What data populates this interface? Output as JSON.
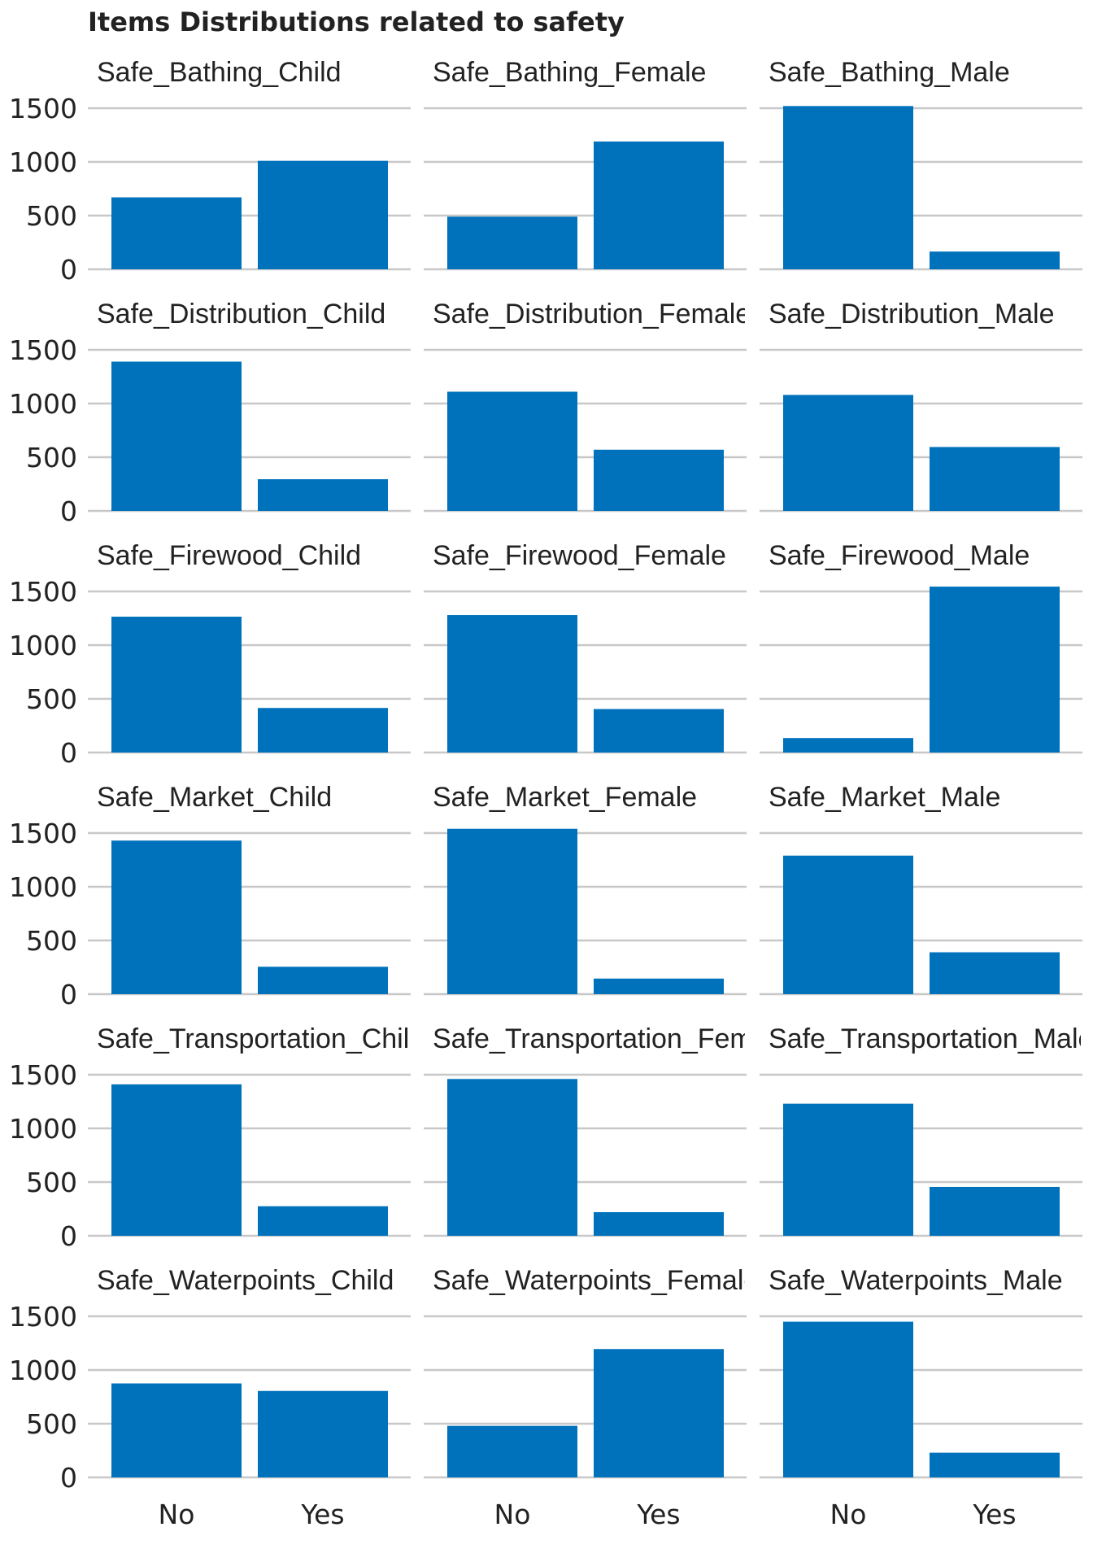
{
  "chart_data": {
    "type": "bar",
    "title": "Items Distributions related to safety",
    "categories": [
      "No",
      "Yes"
    ],
    "ylim": [
      0,
      1550
    ],
    "yticks": [
      0,
      500,
      1000,
      1500
    ],
    "grid": true,
    "bar_color": "#0072bc",
    "panels": [
      {
        "name": "Safe_Bathing_Child",
        "values": [
          670,
          1010
        ]
      },
      {
        "name": "Safe_Bathing_Female",
        "values": [
          490,
          1190
        ]
      },
      {
        "name": "Safe_Bathing_Male",
        "values": [
          1520,
          165
        ]
      },
      {
        "name": "Safe_Distribution_Child",
        "values": [
          1390,
          295
        ]
      },
      {
        "name": "Safe_Distribution_Female",
        "values": [
          1110,
          570
        ]
      },
      {
        "name": "Safe_Distribution_Male",
        "values": [
          1080,
          595
        ]
      },
      {
        "name": "Safe_Firewood_Child",
        "values": [
          1265,
          415
        ]
      },
      {
        "name": "Safe_Firewood_Female",
        "values": [
          1280,
          405
        ]
      },
      {
        "name": "Safe_Firewood_Male",
        "values": [
          135,
          1545
        ]
      },
      {
        "name": "Safe_Market_Child",
        "values": [
          1430,
          255
        ]
      },
      {
        "name": "Safe_Market_Female",
        "values": [
          1540,
          145
        ]
      },
      {
        "name": "Safe_Market_Male",
        "values": [
          1290,
          390
        ]
      },
      {
        "name": "Safe_Transportation_Child",
        "values": [
          1410,
          275
        ]
      },
      {
        "name": "Safe_Transportation_Female",
        "values": [
          1460,
          220
        ]
      },
      {
        "name": "Safe_Transportation_Male",
        "values": [
          1230,
          455
        ]
      },
      {
        "name": "Safe_Waterpoints_Child",
        "values": [
          875,
          805
        ]
      },
      {
        "name": "Safe_Waterpoints_Female",
        "values": [
          480,
          1195
        ]
      },
      {
        "name": "Safe_Waterpoints_Male",
        "values": [
          1450,
          230
        ]
      }
    ]
  }
}
